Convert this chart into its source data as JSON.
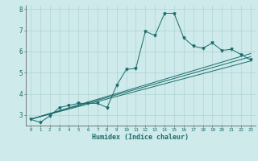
{
  "xlabel": "Humidex (Indice chaleur)",
  "ylabel": "",
  "background_color": "#ceeaea",
  "line_color": "#1a6b6b",
  "grid_color": "#b0d4d4",
  "xlim": [
    -0.5,
    23.5
  ],
  "ylim": [
    2.5,
    8.2
  ],
  "yticks": [
    3,
    4,
    5,
    6,
    7,
    8
  ],
  "xticks": [
    0,
    1,
    2,
    3,
    4,
    5,
    6,
    7,
    8,
    9,
    10,
    11,
    12,
    13,
    14,
    15,
    16,
    17,
    18,
    19,
    20,
    21,
    22,
    23
  ],
  "series1_x": [
    0,
    1,
    2,
    3,
    4,
    5,
    6,
    7,
    8,
    9,
    10,
    11,
    12,
    13,
    14,
    15,
    16,
    17,
    18,
    19,
    20,
    21,
    22,
    23
  ],
  "series1_y": [
    2.8,
    2.65,
    2.95,
    3.35,
    3.45,
    3.55,
    3.55,
    3.55,
    3.35,
    4.4,
    5.15,
    5.2,
    6.95,
    6.75,
    7.8,
    7.8,
    6.65,
    6.25,
    6.15,
    6.4,
    6.05,
    6.1,
    5.85,
    5.6
  ],
  "series2_x": [
    0,
    23
  ],
  "series2_y": [
    2.8,
    5.75
  ],
  "series3_x": [
    0,
    23
  ],
  "series3_y": [
    2.8,
    5.9
  ],
  "series4_x": [
    0,
    23
  ],
  "series4_y": [
    2.8,
    5.55
  ]
}
